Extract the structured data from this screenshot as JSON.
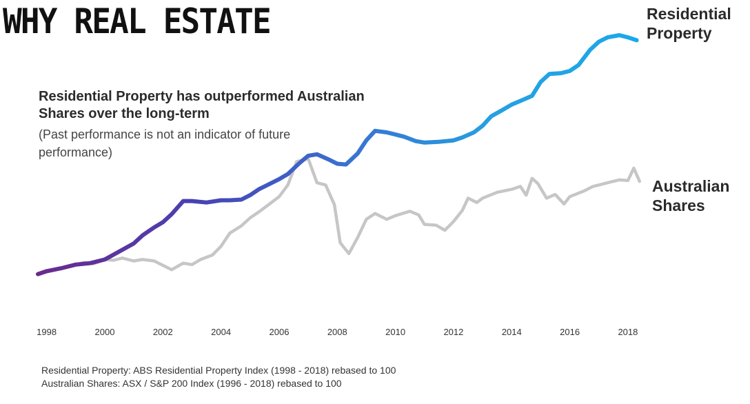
{
  "page": {
    "title": "WHY REAL ESTATE",
    "headline": "Residential Property has outperformed Australian Shares over the long-term",
    "disclaimer": "(Past performance is not an indicator of future performance)",
    "series_labels": {
      "residential": "Residential Property",
      "shares": "Australian Shares"
    },
    "footnotes": [
      "Residential Property: ABS Residential Property Index (1998 - 2018) rebased to 100",
      "Australian Shares: ASX / S&P 200 Index (1996 - 2018) rebased to 100"
    ]
  },
  "chart_data": {
    "type": "line",
    "title": "",
    "xlabel": "",
    "ylabel": "",
    "xlim": [
      1997.7,
      2018.5
    ],
    "ylim": [
      60,
      460
    ],
    "grid": false,
    "legend": "inline-right",
    "xticks": [
      "1998",
      "2000",
      "2002",
      "2004",
      "2006",
      "2008",
      "2010",
      "2012",
      "2014",
      "2016",
      "2018"
    ],
    "series": [
      {
        "name": "Residential Property",
        "gradient": [
          "#6a2a8e",
          "#4a3fb0",
          "#3a6fd0",
          "#26a0e0",
          "#1aa9ea"
        ],
        "points": [
          [
            1997.7,
            100
          ],
          [
            1998.0,
            104
          ],
          [
            1998.5,
            108
          ],
          [
            1999.0,
            113
          ],
          [
            1999.5,
            115
          ],
          [
            2000.0,
            120
          ],
          [
            2000.5,
            131
          ],
          [
            2001.0,
            142
          ],
          [
            2001.3,
            153
          ],
          [
            2001.7,
            164
          ],
          [
            2002.0,
            171
          ],
          [
            2002.3,
            182
          ],
          [
            2002.7,
            200
          ],
          [
            2003.0,
            200
          ],
          [
            2003.5,
            198
          ],
          [
            2004.0,
            201
          ],
          [
            2004.3,
            201
          ],
          [
            2004.7,
            202
          ],
          [
            2005.0,
            208
          ],
          [
            2005.3,
            216
          ],
          [
            2005.7,
            224
          ],
          [
            2006.0,
            230
          ],
          [
            2006.3,
            237
          ],
          [
            2006.7,
            252
          ],
          [
            2007.0,
            262
          ],
          [
            2007.3,
            264
          ],
          [
            2007.7,
            257
          ],
          [
            2008.0,
            251
          ],
          [
            2008.3,
            250
          ],
          [
            2008.7,
            265
          ],
          [
            2009.0,
            283
          ],
          [
            2009.3,
            296
          ],
          [
            2009.7,
            294
          ],
          [
            2010.0,
            291
          ],
          [
            2010.3,
            288
          ],
          [
            2010.7,
            282
          ],
          [
            2011.0,
            280
          ],
          [
            2011.5,
            281
          ],
          [
            2012.0,
            283
          ],
          [
            2012.3,
            287
          ],
          [
            2012.7,
            294
          ],
          [
            2013.0,
            303
          ],
          [
            2013.3,
            316
          ],
          [
            2013.7,
            325
          ],
          [
            2014.0,
            332
          ],
          [
            2014.3,
            337
          ],
          [
            2014.7,
            344
          ],
          [
            2015.0,
            363
          ],
          [
            2015.3,
            374
          ],
          [
            2015.7,
            375
          ],
          [
            2016.0,
            378
          ],
          [
            2016.3,
            386
          ],
          [
            2016.7,
            407
          ],
          [
            2017.0,
            418
          ],
          [
            2017.3,
            424
          ],
          [
            2017.7,
            427
          ],
          [
            2018.0,
            424
          ],
          [
            2018.3,
            420
          ]
        ]
      },
      {
        "name": "Australian Shares",
        "color": "#c6c6c6",
        "points": [
          [
            1997.7,
            100
          ],
          [
            1998.0,
            105
          ],
          [
            1998.5,
            108
          ],
          [
            1999.0,
            113
          ],
          [
            1999.3,
            116
          ],
          [
            1999.6,
            114
          ],
          [
            2000.0,
            120
          ],
          [
            2000.3,
            119
          ],
          [
            2000.6,
            122
          ],
          [
            2001.0,
            118
          ],
          [
            2001.3,
            120
          ],
          [
            2001.7,
            118
          ],
          [
            2002.0,
            112
          ],
          [
            2002.3,
            106
          ],
          [
            2002.7,
            115
          ],
          [
            2003.0,
            113
          ],
          [
            2003.3,
            120
          ],
          [
            2003.7,
            126
          ],
          [
            2004.0,
            138
          ],
          [
            2004.3,
            156
          ],
          [
            2004.7,
            166
          ],
          [
            2005.0,
            177
          ],
          [
            2005.3,
            185
          ],
          [
            2005.7,
            197
          ],
          [
            2006.0,
            206
          ],
          [
            2006.3,
            222
          ],
          [
            2006.6,
            254
          ],
          [
            2007.0,
            258
          ],
          [
            2007.3,
            225
          ],
          [
            2007.6,
            222
          ],
          [
            2007.9,
            195
          ],
          [
            2008.1,
            143
          ],
          [
            2008.4,
            128
          ],
          [
            2008.7,
            150
          ],
          [
            2009.0,
            175
          ],
          [
            2009.3,
            183
          ],
          [
            2009.7,
            175
          ],
          [
            2010.0,
            180
          ],
          [
            2010.5,
            186
          ],
          [
            2010.8,
            181
          ],
          [
            2011.0,
            168
          ],
          [
            2011.4,
            167
          ],
          [
            2011.7,
            160
          ],
          [
            2012.0,
            172
          ],
          [
            2012.3,
            187
          ],
          [
            2012.5,
            204
          ],
          [
            2012.8,
            198
          ],
          [
            2013.0,
            204
          ],
          [
            2013.5,
            212
          ],
          [
            2014.0,
            216
          ],
          [
            2014.3,
            220
          ],
          [
            2014.5,
            208
          ],
          [
            2014.7,
            231
          ],
          [
            2014.9,
            224
          ],
          [
            2015.2,
            204
          ],
          [
            2015.5,
            209
          ],
          [
            2015.8,
            196
          ],
          [
            2016.0,
            206
          ],
          [
            2016.5,
            214
          ],
          [
            2016.8,
            220
          ],
          [
            2017.0,
            222
          ],
          [
            2017.4,
            226
          ],
          [
            2017.7,
            229
          ],
          [
            2018.0,
            228
          ],
          [
            2018.2,
            245
          ],
          [
            2018.4,
            227
          ]
        ]
      }
    ]
  }
}
